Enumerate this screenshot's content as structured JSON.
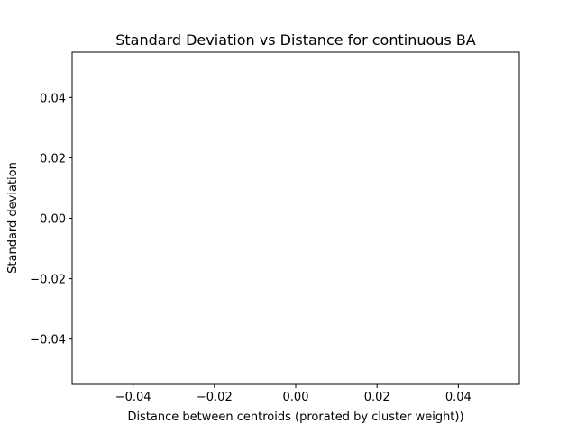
{
  "chart_data": {
    "type": "scatter",
    "title": "Standard Deviation vs Distance for continuous BA",
    "xlabel": "Distance between centroids (prorated by cluster weight))",
    "ylabel": "Standard deviation",
    "xlim": [
      -0.055,
      0.055
    ],
    "ylim": [
      -0.055,
      0.055
    ],
    "xticks": [
      -0.04,
      -0.02,
      0.0,
      0.02,
      0.04
    ],
    "yticks": [
      -0.04,
      -0.02,
      0.0,
      0.02,
      0.04
    ],
    "xtick_labels": [
      "−0.04",
      "−0.02",
      "0.00",
      "0.02",
      "0.04"
    ],
    "ytick_labels": [
      "−0.04",
      "−0.02",
      "0.00",
      "0.02",
      "0.04"
    ],
    "grid": false,
    "series": [
      {
        "x": [],
        "y": []
      }
    ],
    "colors": {
      "axes": "#000000",
      "background": "#ffffff"
    }
  }
}
